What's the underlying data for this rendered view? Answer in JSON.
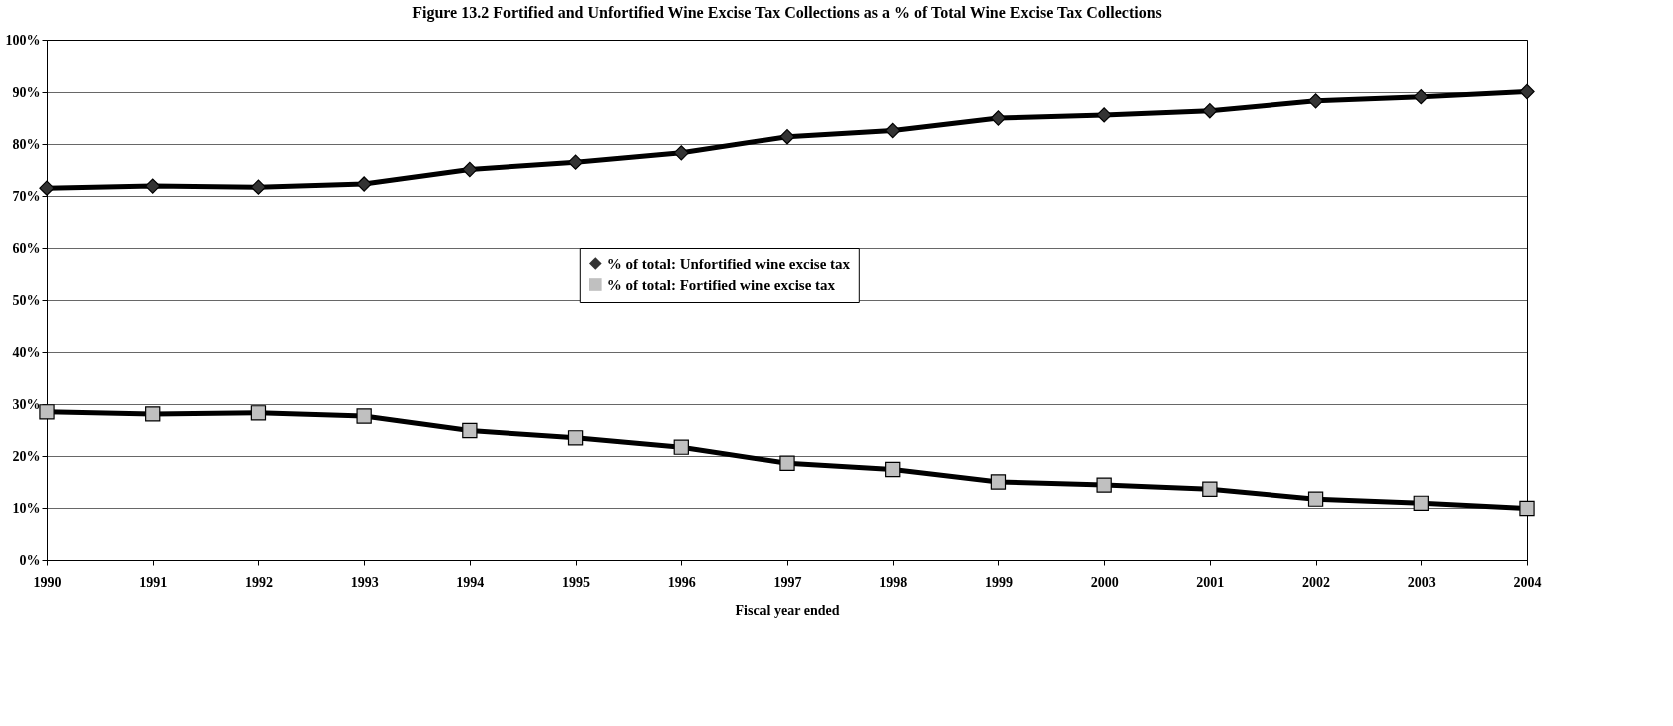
{
  "chart_data": {
    "type": "line",
    "title": "Figure 13.2  Fortified and Unfortified Wine Excise Tax Collections as a % of Total Wine Excise Tax Collections",
    "xlabel": "Fiscal year ended",
    "x": [
      1990,
      1991,
      1992,
      1993,
      1994,
      1995,
      1996,
      1997,
      1998,
      1999,
      2000,
      2001,
      2002,
      2003,
      2004
    ],
    "series": [
      {
        "name": "% of total: Unfortified wine excise tax",
        "color": "#000000",
        "marker": "diamond",
        "values": [
          71.5,
          71.9,
          71.7,
          72.3,
          75.1,
          76.5,
          78.3,
          81.4,
          82.6,
          85.0,
          85.6,
          86.4,
          88.3,
          89.1,
          90.1
        ]
      },
      {
        "name": "% of total: Fortified wine excise tax",
        "color": "#000000",
        "marker": "square",
        "values": [
          28.5,
          28.1,
          28.3,
          27.7,
          24.9,
          23.5,
          21.7,
          18.6,
          17.4,
          15.0,
          14.4,
          13.6,
          11.7,
          10.9,
          9.9
        ]
      }
    ],
    "xlim": [
      1990,
      2004
    ],
    "xticks": [
      1990,
      1991,
      1992,
      1993,
      1994,
      1995,
      1996,
      1997,
      1998,
      1999,
      2000,
      2001,
      2002,
      2003,
      2004
    ],
    "ylim": [
      0,
      100
    ],
    "yticks": [
      {
        "value": 0,
        "label": "0%"
      },
      {
        "value": 10,
        "label": "10%"
      },
      {
        "value": 20,
        "label": "20%"
      },
      {
        "value": 30,
        "label": "30%"
      },
      {
        "value": 40,
        "label": "40%"
      },
      {
        "value": 50,
        "label": "50%"
      },
      {
        "value": 60,
        "label": "60%"
      },
      {
        "value": 70,
        "label": "70%"
      },
      {
        "value": 80,
        "label": "80%"
      },
      {
        "value": 90,
        "label": "90%"
      },
      {
        "value": 100,
        "label": "100%"
      }
    ],
    "grid": "y",
    "legend": "center",
    "line_style": "solid"
  }
}
